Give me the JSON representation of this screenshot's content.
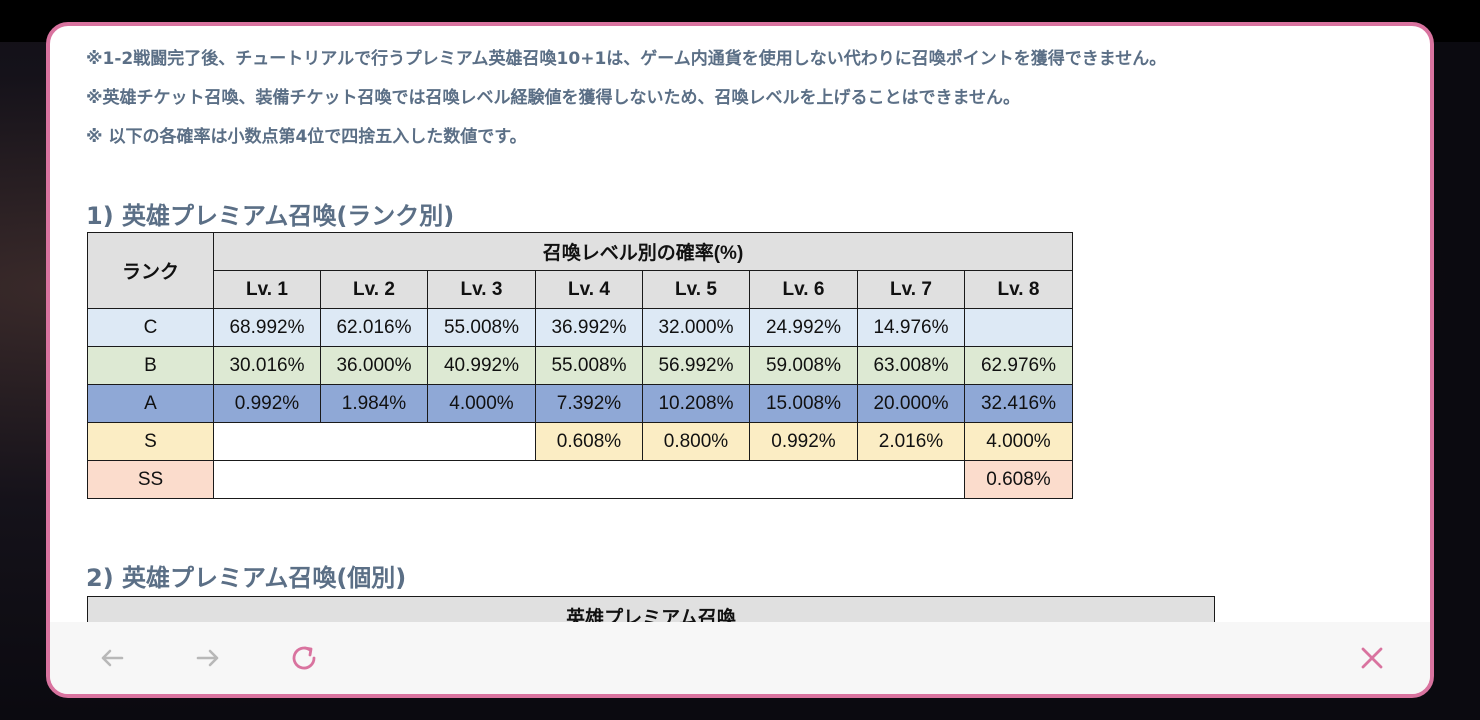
{
  "notes": [
    "※1-2戦闘完了後、チュートリアルで行うプレミアム英雄召喚10+1は、ゲーム内通貨を使用しない代わりに召喚ポイントを獲得できません。",
    "※英雄チケット召喚、装備チケット召喚では召喚レベル経験値を獲得しないため、召喚レベルを上げることはできません。",
    "※ 以下の各確率は小数点第4位で四捨五入した数値です。"
  ],
  "section1": {
    "title": "1) 英雄プレミアム召喚(ランク別)",
    "table": {
      "rank_header": "ランク",
      "group_header": "召喚レベル別の確率(%)",
      "levels": [
        "Lv. 1",
        "Lv. 2",
        "Lv. 3",
        "Lv. 4",
        "Lv. 5",
        "Lv. 6",
        "Lv. 7",
        "Lv. 8"
      ],
      "rows": [
        {
          "rank": "C",
          "values": [
            "68.992%",
            "62.016%",
            "55.008%",
            "36.992%",
            "32.000%",
            "24.992%",
            "14.976%",
            ""
          ]
        },
        {
          "rank": "B",
          "values": [
            "30.016%",
            "36.000%",
            "40.992%",
            "55.008%",
            "56.992%",
            "59.008%",
            "63.008%",
            "62.976%"
          ]
        },
        {
          "rank": "A",
          "values": [
            "0.992%",
            "1.984%",
            "4.000%",
            "7.392%",
            "10.208%",
            "15.008%",
            "20.000%",
            "32.416%"
          ]
        },
        {
          "rank": "S",
          "values": [
            "0.608%",
            "0.800%",
            "0.992%",
            "2.016%",
            "4.000%"
          ]
        },
        {
          "rank": "SS",
          "values": [
            "0.608%"
          ]
        }
      ]
    },
    "row_colors": {
      "C": "#dde9f5",
      "B": "#dde9d3",
      "A": "#8fa8d6",
      "S": "#fbedc4",
      "SS": "#fbdccc"
    }
  },
  "section2": {
    "title": "2) 英雄プレミアム召喚(個別)",
    "table_header": "英雄プレミアム召喚"
  },
  "nav": {
    "back_icon": "arrow-left-icon",
    "forward_icon": "arrow-right-icon",
    "reload_icon": "reload-icon",
    "close_icon": "close-icon"
  },
  "colors": {
    "accent": "#d9739f",
    "text_muted": "#5b6f86"
  }
}
